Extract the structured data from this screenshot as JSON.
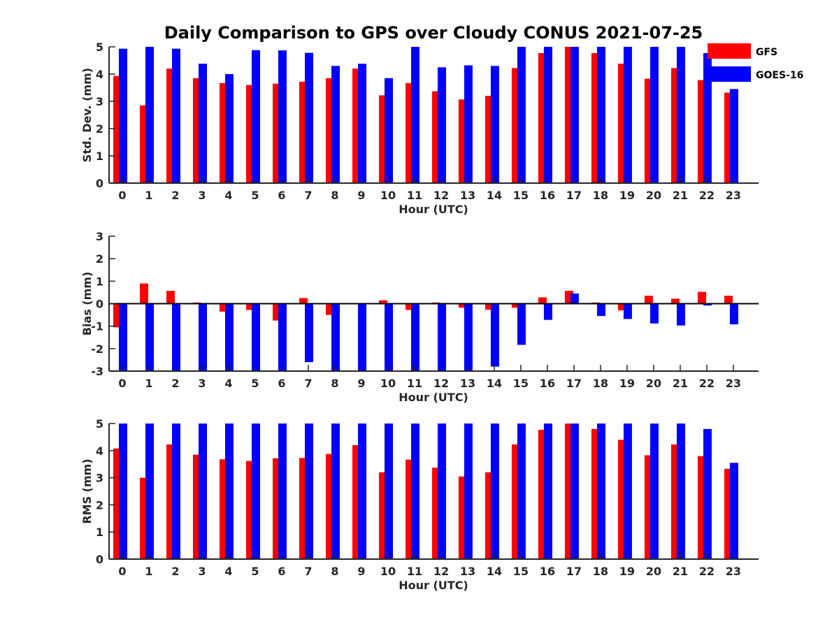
{
  "chart_data": {
    "type": "bar",
    "title": "Daily Comparison to GPS over Cloudy CONUS 2021-07-25",
    "categories": [
      "0",
      "1",
      "2",
      "3",
      "4",
      "5",
      "6",
      "7",
      "8",
      "9",
      "10",
      "11",
      "12",
      "13",
      "14",
      "15",
      "16",
      "17",
      "18",
      "19",
      "20",
      "21",
      "22",
      "23"
    ],
    "legend": {
      "placement": "top-right",
      "entries": [
        "GFS",
        "GOES-16"
      ]
    },
    "colors": {
      "GFS": "#ff0000",
      "GOES-16": "#0000ff",
      "axis": "#262626"
    },
    "panels": [
      {
        "ylabel": "Std. Dev. (mm)",
        "xlabel": "Hour (UTC)",
        "ylim": [
          0,
          5
        ],
        "yticks": [
          "0",
          "1",
          "2",
          "3",
          "4",
          "5"
        ],
        "series": [
          {
            "name": "GFS",
            "values": [
              3.93,
              2.85,
              4.2,
              3.85,
              3.67,
              3.6,
              3.65,
              3.72,
              3.85,
              4.2,
              3.22,
              3.67,
              3.37,
              3.07,
              3.2,
              4.22,
              4.77,
              5.0,
              4.77,
              4.38,
              3.83,
              4.22,
              3.78,
              3.32
            ]
          },
          {
            "name": "GOES-16",
            "values": [
              4.93,
              5.0,
              4.93,
              4.38,
              4.0,
              4.88,
              4.87,
              4.78,
              4.3,
              4.38,
              3.85,
              5.0,
              4.25,
              4.32,
              4.3,
              5.0,
              5.0,
              5.0,
              5.0,
              5.0,
              5.0,
              5.0,
              4.77,
              3.45
            ]
          }
        ]
      },
      {
        "ylabel": "Bias (mm)",
        "xlabel": "Hour (UTC)",
        "ylim": [
          -3,
          3
        ],
        "yticks": [
          "-3",
          "-2",
          "-1",
          "0",
          "1",
          "2",
          "3"
        ],
        "series": [
          {
            "name": "GFS",
            "values": [
              -1.05,
              0.9,
              0.57,
              0.05,
              -0.35,
              -0.28,
              -0.75,
              0.25,
              -0.5,
              0.0,
              0.15,
              -0.28,
              0.05,
              -0.18,
              -0.27,
              -0.18,
              0.28,
              0.57,
              0.05,
              -0.3,
              0.35,
              0.22,
              0.53,
              0.35
            ]
          },
          {
            "name": "GOES-16",
            "values": [
              -3.0,
              -3.0,
              -3.0,
              -3.0,
              -3.0,
              -3.0,
              -3.0,
              -2.6,
              -3.0,
              -3.0,
              -3.0,
              -3.0,
              -3.0,
              -3.0,
              -2.8,
              -1.83,
              -0.72,
              0.45,
              -0.55,
              -0.68,
              -0.88,
              -0.97,
              -0.08,
              -0.92
            ]
          }
        ]
      },
      {
        "ylabel": "RMS (mm)",
        "xlabel": "Hour (UTC)",
        "ylim": [
          0,
          5
        ],
        "yticks": [
          "0",
          "1",
          "2",
          "3",
          "4",
          "5"
        ],
        "series": [
          {
            "name": "GFS",
            "values": [
              4.08,
              3.0,
              4.23,
              3.85,
              3.68,
              3.62,
              3.72,
              3.73,
              3.88,
              4.2,
              3.2,
              3.67,
              3.37,
              3.05,
              3.2,
              4.23,
              4.77,
              5.0,
              4.8,
              4.4,
              3.83,
              4.23,
              3.8,
              3.33
            ]
          },
          {
            "name": "GOES-16",
            "values": [
              5.0,
              5.0,
              5.0,
              5.0,
              5.0,
              5.0,
              5.0,
              5.0,
              5.0,
              5.0,
              5.0,
              5.0,
              5.0,
              5.0,
              5.0,
              5.0,
              5.0,
              5.0,
              5.0,
              5.0,
              5.0,
              5.0,
              4.8,
              3.55
            ]
          }
        ]
      }
    ]
  }
}
